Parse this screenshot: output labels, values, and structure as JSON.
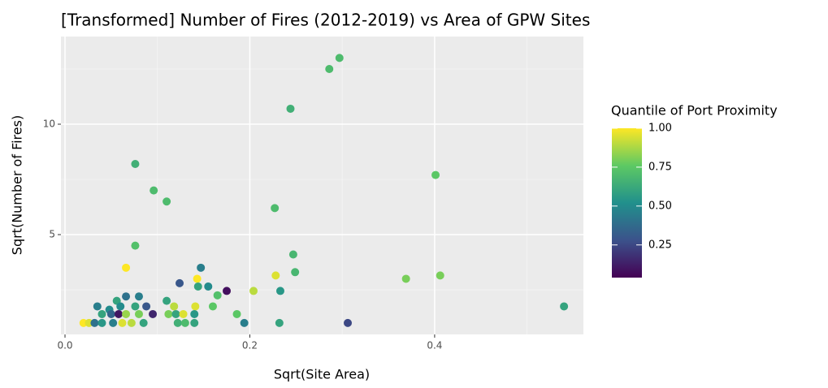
{
  "chart_data": {
    "type": "scatter",
    "title": "[Transformed] Number of Fires (2012-2019) vs Area of GPW Sites",
    "x_label": "Sqrt(Site Area)",
    "y_label": "Sqrt(Number of Fires)",
    "legend_title": "Quantile of Port Proximity",
    "x": [
      0.297,
      0.286,
      0.244,
      0.076,
      0.401,
      0.096,
      0.11,
      0.227,
      0.076,
      0.247,
      0.249,
      0.066,
      0.147,
      0.143,
      0.228,
      0.369,
      0.406,
      0.124,
      0.144,
      0.155,
      0.175,
      0.204,
      0.233,
      0.165,
      0.066,
      0.08,
      0.11,
      0.056,
      0.16,
      0.54,
      0.035,
      0.048,
      0.06,
      0.076,
      0.088,
      0.118,
      0.141,
      0.04,
      0.05,
      0.058,
      0.066,
      0.08,
      0.095,
      0.112,
      0.12,
      0.128,
      0.14,
      0.186,
      0.02,
      0.026,
      0.032,
      0.04,
      0.052,
      0.062,
      0.072,
      0.085,
      0.122,
      0.13,
      0.14,
      0.194,
      0.232,
      0.306
    ],
    "y": [
      13.0,
      12.5,
      10.7,
      8.2,
      7.7,
      7.0,
      6.5,
      6.2,
      4.5,
      4.1,
      3.3,
      3.5,
      3.5,
      3.0,
      3.15,
      3.0,
      3.15,
      2.8,
      2.65,
      2.65,
      2.45,
      2.45,
      2.45,
      2.25,
      2.2,
      2.2,
      2.0,
      2.0,
      1.75,
      1.75,
      1.75,
      1.6,
      1.75,
      1.75,
      1.75,
      1.75,
      1.75,
      1.4,
      1.4,
      1.4,
      1.4,
      1.4,
      1.4,
      1.4,
      1.4,
      1.4,
      1.4,
      1.4,
      1.0,
      1.0,
      1.0,
      1.0,
      1.0,
      1.0,
      1.0,
      1.0,
      1.0,
      1.0,
      1.0,
      1.0,
      1.0,
      1.0
    ],
    "z": [
      0.7,
      0.7,
      0.65,
      0.65,
      0.75,
      0.7,
      0.7,
      0.7,
      0.72,
      0.68,
      0.68,
      1.0,
      0.45,
      1.0,
      0.95,
      0.8,
      0.8,
      0.3,
      0.6,
      0.5,
      0.08,
      0.9,
      0.55,
      0.72,
      0.4,
      0.45,
      0.6,
      0.6,
      0.75,
      0.6,
      0.45,
      0.5,
      0.5,
      0.6,
      0.3,
      0.9,
      0.95,
      0.6,
      0.35,
      0.1,
      0.85,
      0.8,
      0.15,
      0.8,
      0.6,
      0.95,
      0.55,
      0.75,
      1.0,
      0.95,
      0.4,
      0.55,
      0.45,
      0.95,
      0.9,
      0.6,
      0.65,
      0.7,
      0.6,
      0.45,
      0.6,
      0.25
    ],
    "xlim": [
      -0.0044,
      0.561
    ],
    "ylim": [
      0.48,
      13.97
    ],
    "zlim": [
      0.04,
      1.0
    ],
    "xticks": [
      {
        "value": 0,
        "label": "0.0"
      },
      0.2,
      0.4
    ],
    "yticks": [
      5,
      10
    ],
    "x_minor_grid": [
      0.1,
      0.3,
      0.5
    ],
    "y_minor_grid": [
      2.5,
      7.5,
      12.5
    ],
    "zticks": [
      0.25,
      {
        "value": 0.5,
        "label": "0.50"
      },
      0.75,
      {
        "value": 1,
        "label": "1.00"
      }
    ],
    "colormap": "viridis",
    "grid": true
  }
}
